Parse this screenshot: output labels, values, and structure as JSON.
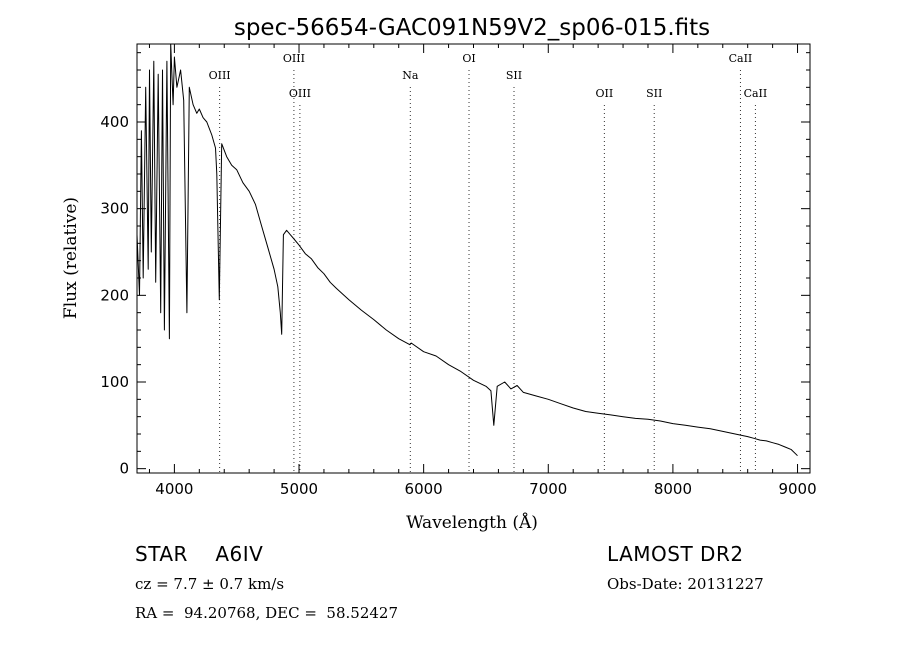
{
  "chart_data": {
    "type": "line",
    "title": "spec-56654-GAC091N59V2_sp06-015.fits",
    "xlabel": "Wavelength (Å)",
    "ylabel": "Flux (relative)",
    "xlim": [
      3700,
      9100
    ],
    "ylim": [
      -5,
      490
    ],
    "xticks": [
      4000,
      5000,
      6000,
      7000,
      8000,
      9000
    ],
    "xtick_labels": [
      "4000",
      "5000",
      "6000",
      "7000",
      "8000",
      "9000"
    ],
    "yticks": [
      0,
      100,
      200,
      300,
      400
    ],
    "ytick_labels": [
      "0",
      "100",
      "200",
      "300",
      "400"
    ],
    "grid": false,
    "series": [
      {
        "x": [
          3700,
          3720,
          3735,
          3750,
          3770,
          3790,
          3800,
          3815,
          3835,
          3850,
          3870,
          3890,
          3905,
          3920,
          3940,
          3960,
          3970,
          3990,
          4000,
          4020,
          4050,
          4075,
          4100,
          4120,
          4150,
          4180,
          4200,
          4230,
          4260,
          4300,
          4330,
          4340,
          4360,
          4380,
          4420,
          4460,
          4500,
          4550,
          4600,
          4650,
          4700,
          4750,
          4800,
          4830,
          4850,
          4861,
          4875,
          4900,
          4930,
          4960,
          5000,
          5050,
          5100,
          5150,
          5200,
          5250,
          5300,
          5400,
          5500,
          5600,
          5700,
          5800,
          5890,
          5900,
          6000,
          6100,
          6200,
          6300,
          6400,
          6500,
          6540,
          6563,
          6590,
          6650,
          6700,
          6750,
          6800,
          6900,
          7000,
          7100,
          7200,
          7300,
          7400,
          7500,
          7600,
          7700,
          7800,
          7900,
          8000,
          8100,
          8200,
          8300,
          8400,
          8500,
          8600,
          8650,
          8700,
          8750,
          8800,
          8850,
          8900,
          8950,
          9000
        ],
        "y": [
          270,
          200,
          390,
          220,
          440,
          230,
          460,
          250,
          470,
          215,
          455,
          180,
          460,
          160,
          470,
          150,
          490,
          420,
          475,
          440,
          460,
          425,
          180,
          440,
          420,
          410,
          415,
          405,
          400,
          385,
          370,
          340,
          195,
          375,
          360,
          350,
          345,
          330,
          320,
          305,
          280,
          255,
          230,
          210,
          180,
          155,
          270,
          275,
          270,
          265,
          258,
          248,
          242,
          232,
          225,
          215,
          208,
          195,
          183,
          172,
          160,
          150,
          143,
          145,
          135,
          130,
          120,
          112,
          102,
          95,
          90,
          50,
          95,
          100,
          92,
          96,
          88,
          84,
          80,
          75,
          70,
          66,
          64,
          62,
          60,
          58,
          57,
          55,
          52,
          50,
          48,
          46,
          43,
          40,
          37,
          35,
          33,
          32,
          30,
          28,
          25,
          22,
          15
        ]
      }
    ],
    "lines": [
      {
        "label": "OIII",
        "x": 4363,
        "tier": 2
      },
      {
        "label": "OIII",
        "x": 4959,
        "tier": 1
      },
      {
        "label": "OIII",
        "x": 5007,
        "tier": 3
      },
      {
        "label": "Na",
        "x": 5893,
        "tier": 2
      },
      {
        "label": "OI",
        "x": 6364,
        "tier": 1
      },
      {
        "label": "SII",
        "x": 6725,
        "tier": 2
      },
      {
        "label": "OII",
        "x": 7450,
        "tier": 3
      },
      {
        "label": "SII",
        "x": 7850,
        "tier": 3
      },
      {
        "label": "CaII",
        "x": 8542,
        "tier": 1
      },
      {
        "label": "CaII",
        "x": 8662,
        "tier": 3
      }
    ]
  },
  "info": {
    "object": "STAR    A6IV",
    "survey": "LAMOST DR2",
    "cz": "cz = 7.7 ± 0.7 km/s",
    "obs_date": "Obs-Date: 20131227",
    "radec": "RA =  94.20768, DEC =  58.52427"
  }
}
